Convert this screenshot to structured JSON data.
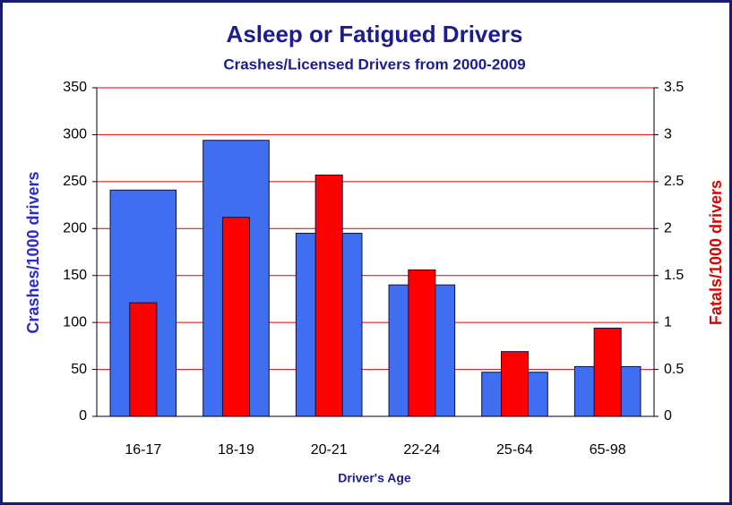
{
  "chart_data": {
    "type": "bar",
    "title": "Asleep or Fatigued Drivers",
    "subtitle": "Crashes/Licensed Drivers from 2000-2009",
    "x_label": "Driver's Age",
    "y_label": "Crashes/1000 drivers",
    "y2_label": "Fatals/1000 drivers",
    "categories": [
      "16-17",
      "18-19",
      "20-21",
      "22-24",
      "25-64",
      "65-98"
    ],
    "series": [
      {
        "name": "Crashes/1000 drivers",
        "color": "#3f6ef0",
        "values": [
          241,
          294,
          195,
          140,
          47,
          53
        ]
      },
      {
        "name": "Fatals/1000 drivers",
        "color": "#ff0000",
        "axis": "y2",
        "values": [
          1.21,
          2.12,
          2.57,
          1.56,
          0.69,
          0.94
        ]
      }
    ],
    "ylim": [
      0,
      350
    ],
    "yticks": [
      0,
      50,
      100,
      150,
      200,
      250,
      300,
      350
    ],
    "y2lim": [
      0,
      3.5
    ],
    "y2ticks": [
      0,
      0.5,
      1,
      1.5,
      2,
      2.5,
      3,
      3.5
    ],
    "grid": true,
    "grid_color": "#e00000"
  }
}
